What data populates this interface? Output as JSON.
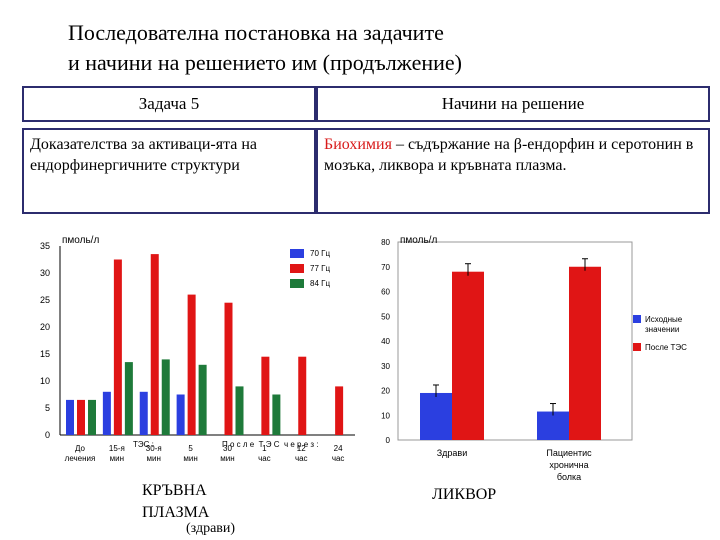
{
  "title_line1": "Последователна постановка на задачите",
  "title_line2": "и начини на решението им (продължение)",
  "table": {
    "header_left": "Задача 5",
    "header_right": "Начини на решение",
    "left_text": "Доказателства за активаци-ята на ендорфинергичните структури",
    "right_highlight": "Биохимия",
    "right_text": " – съдържание на β-ендорфин и серотонин в мозъка, ликвора и кръвната плазма."
  },
  "colors": {
    "blue": "#2b3fe0",
    "red": "#e01515",
    "green": "#1e7a3a",
    "frame": "#2c2c6e"
  },
  "chart_data": [
    {
      "type": "bar",
      "unit_label": "пмоль/л",
      "ylim": [
        0,
        35
      ],
      "yticks": [
        "0",
        "5",
        "10",
        "15",
        "20",
        "25",
        "30",
        "35"
      ],
      "caption_line1": "КРЪВНА",
      "caption_line2": "ПЛАЗМА",
      "caption_line3": "(здрави)",
      "groups": [
        {
          "label": "До\nлечения",
          "values": {
            "70 Гц": 6.5,
            "77 Гц": 6.5,
            "84 Гц": 6.5
          }
        },
        {
          "label": "15-я\nмин",
          "values": {
            "70 Гц": 8,
            "77 Гц": 32.5,
            "84 Гц": 13.5
          }
        },
        {
          "label": "30-я\nмин",
          "values": {
            "70 Гц": 8,
            "77 Гц": 33.5,
            "84 Гц": 14
          }
        },
        {
          "label": "5\nмин",
          "values": {
            "70 Гц": 7.5,
            "77 Гц": 26,
            "84 Гц": 13
          }
        },
        {
          "label": "30\nмин",
          "values": {
            "77 Гц": 24.5,
            "84 Гц": 9
          }
        },
        {
          "label": "1\nчас",
          "values": {
            "77 Гц": 14.5,
            "84 Гц": 7.5
          }
        },
        {
          "label": "12\nчас",
          "values": {
            "77 Гц": 14.5
          }
        },
        {
          "label": "24\nчас",
          "values": {
            "77 Гц": 9
          }
        }
      ],
      "group_header_1": "ТЭС :",
      "group_header_2": "П о с л е  Т Э С  ч е р е з :",
      "series": [
        {
          "name": "70 Гц",
          "color": "#2b3fe0"
        },
        {
          "name": "77 Гц",
          "color": "#e01515"
        },
        {
          "name": "84 Гц",
          "color": "#1e7a3a"
        }
      ]
    },
    {
      "type": "bar",
      "unit_label": "пмоль/л",
      "ylim": [
        0,
        80
      ],
      "yticks": [
        "0",
        "10",
        "20",
        "30",
        "40",
        "50",
        "60",
        "70",
        "80"
      ],
      "categories": [
        "Здрави",
        "Пациентис\nхронична\nболка"
      ],
      "series": [
        {
          "name": "Исходные значении",
          "color": "#2b3fe0",
          "values": [
            19,
            11.5
          ]
        },
        {
          "name": "После ТЭС",
          "color": "#e01515",
          "values": [
            68,
            70
          ]
        }
      ],
      "caption": "ЛИКВОР"
    }
  ]
}
